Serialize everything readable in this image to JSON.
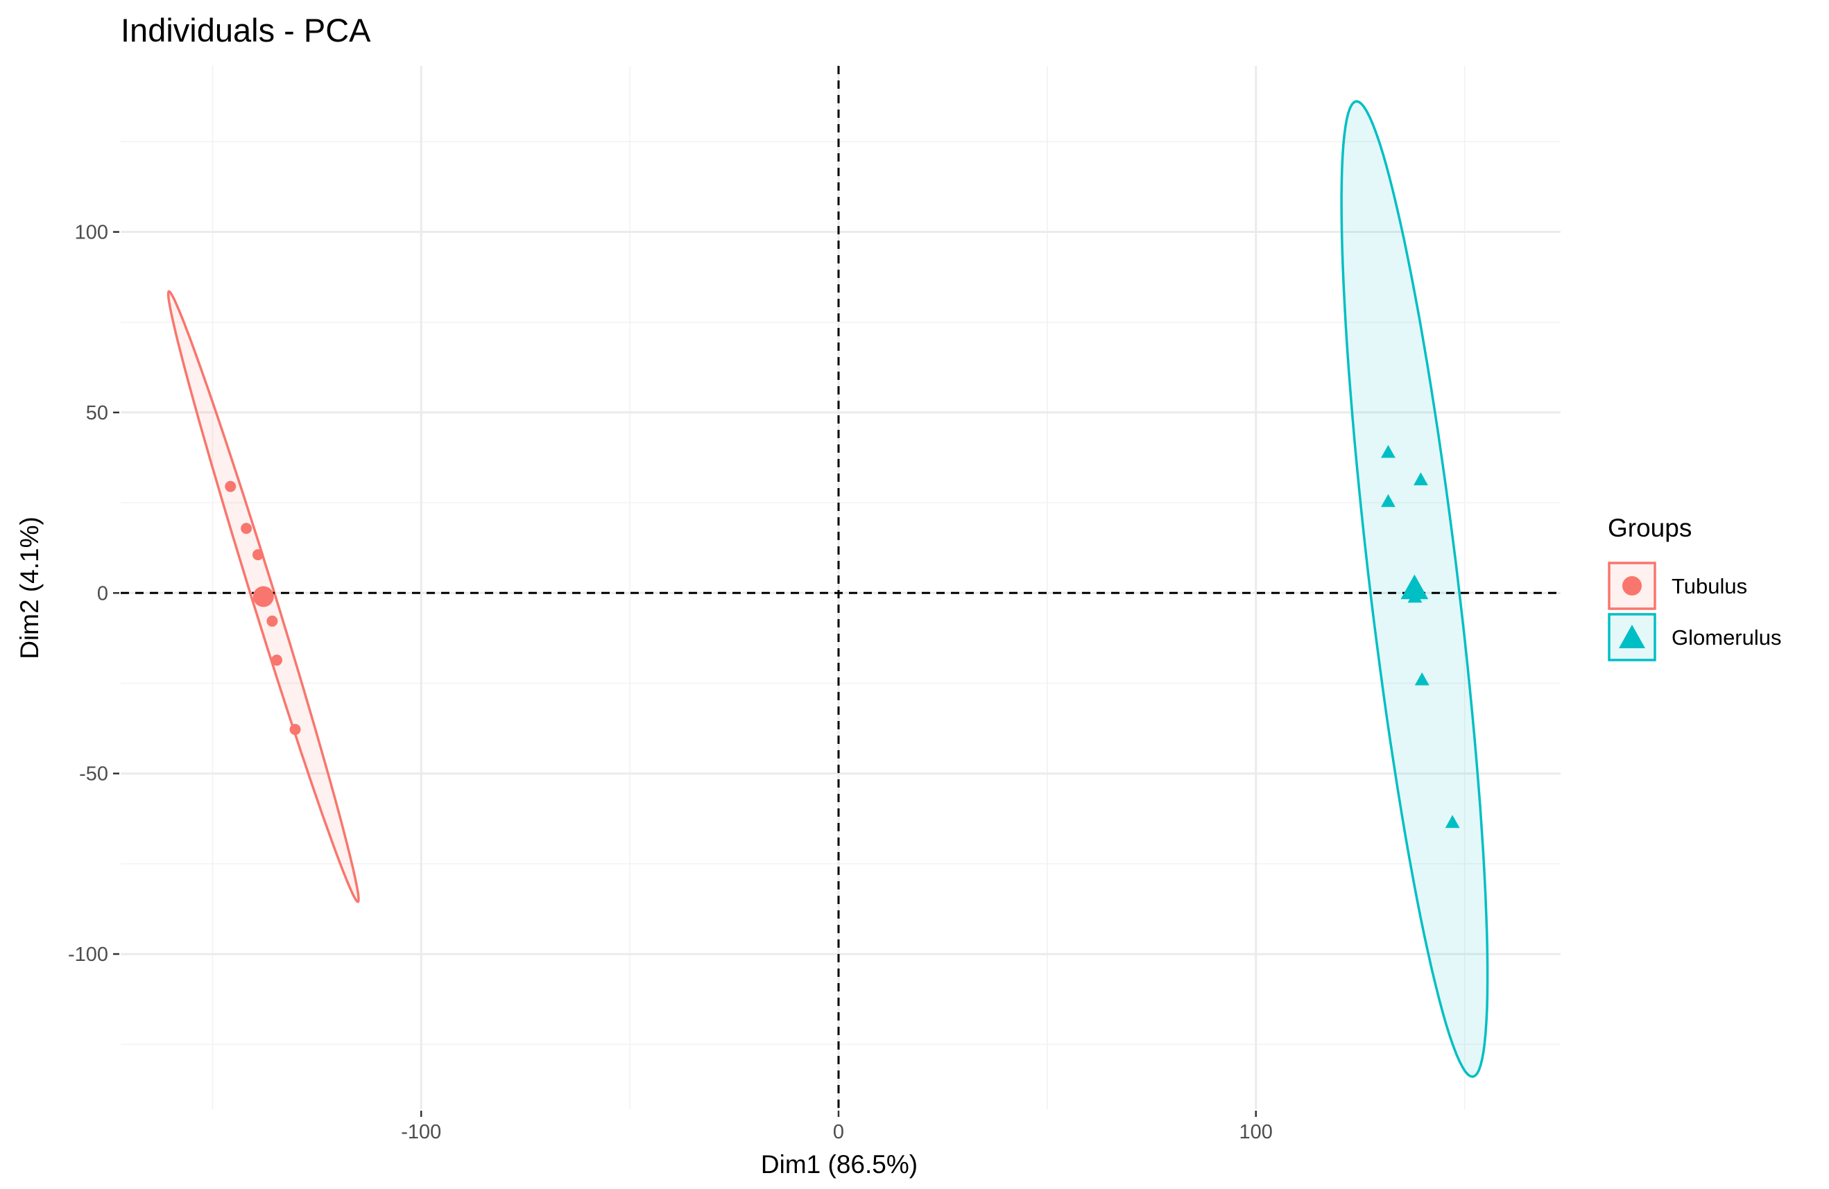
{
  "chart_data": {
    "type": "scatter",
    "title": "Individuals - PCA",
    "xlabel": "Dim1 (86.5%)",
    "ylabel": "Dim2 (4.1%)",
    "xlim": [
      -172,
      173
    ],
    "ylim": [
      -143,
      146
    ],
    "x_ticks": [
      -100,
      0,
      100
    ],
    "x_tick_labels": [
      "-100",
      "0",
      "100"
    ],
    "x_minor_ticks": [
      -150,
      -50,
      50,
      150
    ],
    "y_ticks": [
      -100,
      -50,
      0,
      50,
      100
    ],
    "y_tick_labels": [
      "-100",
      "-50",
      "0",
      "50",
      "100"
    ],
    "y_minor_ticks": [
      -125,
      -75,
      -25,
      25,
      75,
      125
    ],
    "reference_lines": {
      "x": 0,
      "y": 0,
      "style": "dashed"
    },
    "grid": true,
    "legend_title": "Groups",
    "legend_position": "right",
    "series": [
      {
        "name": "Tubulus",
        "color": "#F8766D",
        "marker": "circle",
        "points": [
          [
            -145.7,
            29.5
          ],
          [
            -141.9,
            17.9
          ],
          [
            -139.1,
            10.6
          ],
          [
            -135.7,
            -7.8
          ],
          [
            -134.6,
            -18.6
          ],
          [
            -130.2,
            -37.8
          ]
        ],
        "centroid": [
          -137.8,
          -1.0
        ],
        "ellipse": {
          "center": [
            -137.8,
            -1.0
          ],
          "semi_major": 87.5,
          "semi_minor": 2.8,
          "angle_deg": -75.0
        }
      },
      {
        "name": "Glomerulus",
        "color": "#00BFC4",
        "marker": "triangle",
        "points": [
          [
            131.7,
            38.9
          ],
          [
            139.5,
            31.3
          ],
          [
            131.7,
            25.3
          ],
          [
            138.1,
            -1.2
          ],
          [
            139.8,
            -24.1
          ],
          [
            147.1,
            -63.6
          ]
        ],
        "centroid": [
          138.0,
          1.1
        ],
        "ellipse": {
          "center": [
            138.0,
            1.1
          ],
          "semi_major": 135.8,
          "semi_minor": 10.6,
          "angle_deg": -84.1
        }
      }
    ]
  }
}
